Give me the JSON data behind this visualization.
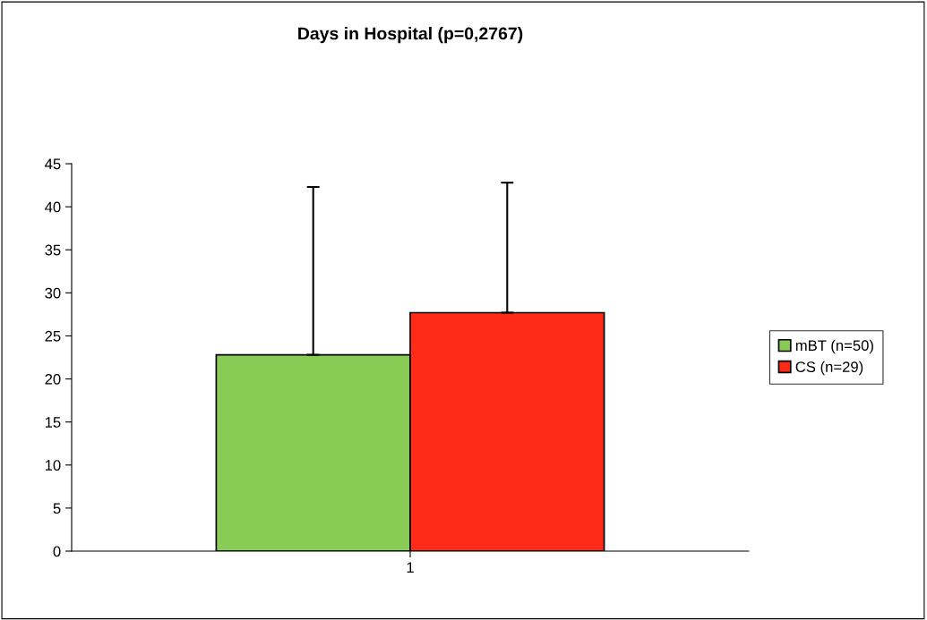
{
  "chart_data": {
    "type": "bar",
    "title": "Days in Hospital (p=0,2767)",
    "categories": [
      "1"
    ],
    "series": [
      {
        "name": "mBT (n=50)",
        "color": "#88cc55",
        "values": [
          22.8
        ],
        "errors": [
          [
            22.8,
            42.3
          ]
        ]
      },
      {
        "name": "CS (n=29)",
        "color": "#ff2a17",
        "values": [
          27.7
        ],
        "errors": [
          [
            27.7,
            42.8
          ]
        ]
      }
    ],
    "ylim": [
      0,
      45
    ],
    "yticks": [
      0,
      5,
      10,
      15,
      20,
      25,
      30,
      35,
      40,
      45
    ],
    "grid": false,
    "legend": "right"
  }
}
